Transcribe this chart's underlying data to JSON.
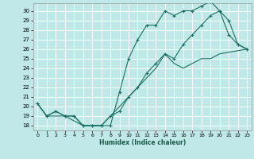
{
  "xlabel": "Humidex (Indice chaleur)",
  "bg_color": "#c0e8e8",
  "grid_color": "#ffffff",
  "line_color": "#1a7060",
  "xlim": [
    -0.5,
    23.5
  ],
  "ylim": [
    17.5,
    30.8
  ],
  "xticks": [
    0,
    1,
    2,
    3,
    4,
    5,
    6,
    7,
    8,
    9,
    10,
    11,
    12,
    13,
    14,
    15,
    16,
    17,
    18,
    19,
    20,
    21,
    22,
    23
  ],
  "yticks": [
    18,
    19,
    20,
    21,
    22,
    23,
    24,
    25,
    26,
    27,
    28,
    29,
    30
  ],
  "line1_x": [
    0,
    1,
    2,
    3,
    4,
    5,
    6,
    7,
    8,
    9,
    10,
    11,
    12,
    13,
    14,
    15,
    16,
    17,
    18,
    19,
    20,
    21,
    22,
    23
  ],
  "line1_y": [
    20.3,
    19.0,
    19.5,
    19.0,
    19.0,
    18.0,
    18.0,
    18.0,
    18.0,
    21.5,
    25.0,
    27.0,
    28.5,
    28.5,
    30.0,
    29.5,
    30.0,
    30.0,
    30.5,
    31.0,
    30.0,
    29.0,
    26.5,
    26.0
  ],
  "line2_x": [
    0,
    1,
    2,
    3,
    4,
    5,
    6,
    7,
    8,
    9,
    10,
    11,
    12,
    13,
    14,
    15,
    16,
    17,
    18,
    19,
    20,
    21,
    22,
    23
  ],
  "line2_y": [
    20.3,
    19.0,
    19.5,
    19.0,
    19.0,
    18.0,
    18.0,
    18.0,
    19.0,
    19.5,
    21.0,
    22.0,
    23.5,
    24.5,
    25.5,
    25.0,
    26.5,
    27.5,
    28.5,
    29.5,
    30.0,
    27.5,
    26.5,
    26.0
  ],
  "line3_x": [
    0,
    1,
    3,
    5,
    6,
    7,
    9,
    10,
    11,
    12,
    13,
    14,
    15,
    16,
    17,
    18,
    19,
    20,
    23
  ],
  "line3_y": [
    20.3,
    19.0,
    19.0,
    18.0,
    18.0,
    18.0,
    20.0,
    21.0,
    22.0,
    23.0,
    24.0,
    25.5,
    24.5,
    24.0,
    24.5,
    25.0,
    25.0,
    25.5,
    26.0
  ]
}
